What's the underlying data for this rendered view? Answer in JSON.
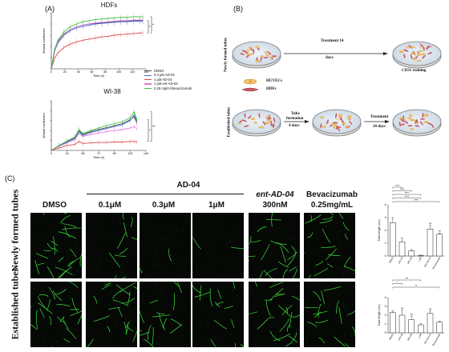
{
  "panel_labels": {
    "a": "(A)",
    "b": "(B)",
    "c": "(C)"
  },
  "chart_data": [
    {
      "type": "line",
      "title": "HDFs",
      "xlabel": "Time (h)",
      "ylabel": "Wound confluence",
      "x_ticks": [
        "0",
        "20",
        "40",
        "60",
        "80",
        "100",
        "120",
        "140"
      ],
      "xlim": [
        0,
        150
      ],
      "ylim": [
        0,
        100
      ],
      "series": [
        {
          "name": "DMSO",
          "color": "#444444",
          "x": [
            0,
            5,
            10,
            20,
            30,
            40,
            50,
            60,
            70,
            80,
            90,
            100,
            110,
            120,
            130,
            140,
            145
          ],
          "y": [
            0,
            32,
            48,
            62,
            70,
            75,
            78,
            80,
            81,
            82,
            83,
            84,
            85,
            85,
            86,
            86,
            86
          ]
        },
        {
          "name": "0.3 μM AD-04",
          "color": "#4a6fd8",
          "x": [
            0,
            5,
            10,
            20,
            30,
            40,
            50,
            60,
            70,
            80,
            90,
            100,
            110,
            120,
            130,
            140,
            145
          ],
          "y": [
            0,
            30,
            45,
            60,
            68,
            73,
            76,
            78,
            80,
            81,
            82,
            83,
            84,
            84,
            85,
            85,
            85
          ]
        },
        {
          "name": "1 μM AD-04",
          "color": "#d94a4a",
          "x": [
            0,
            5,
            10,
            20,
            30,
            40,
            50,
            60,
            70,
            80,
            90,
            100,
            110,
            120,
            130,
            140,
            145
          ],
          "y": [
            0,
            18,
            28,
            38,
            44,
            48,
            51,
            53,
            55,
            57,
            58,
            60,
            61,
            62,
            63,
            64,
            64
          ]
        },
        {
          "name": "1 μM ent-AD-04",
          "color": "#e37ad8",
          "x": [
            0,
            5,
            10,
            20,
            30,
            40,
            50,
            60,
            70,
            80,
            90,
            100,
            110,
            120,
            130,
            140,
            145
          ],
          "y": [
            0,
            31,
            47,
            61,
            70,
            75,
            78,
            80,
            82,
            83,
            84,
            85,
            86,
            86,
            87,
            87,
            87
          ]
        },
        {
          "name": "0.25 mg/ml Bevacizumab",
          "color": "#3fbf3f",
          "x": [
            0,
            5,
            10,
            20,
            30,
            40,
            50,
            60,
            70,
            80,
            90,
            100,
            110,
            120,
            130,
            140,
            145
          ],
          "y": [
            0,
            34,
            50,
            66,
            75,
            80,
            84,
            86,
            88,
            89,
            90,
            91,
            92,
            92,
            93,
            93,
            93
          ]
        }
      ],
      "annotations": [
        "*",
        "*"
      ]
    },
    {
      "type": "line",
      "title": "WI-38",
      "xlabel": "Time (h)",
      "ylabel": "Wound confluence",
      "x_ticks": [
        "0",
        "24",
        "48",
        "72",
        "96",
        "120",
        "144"
      ],
      "xlim": [
        0,
        144
      ],
      "ylim": [
        0,
        100
      ],
      "series": [
        {
          "name": "DMSO",
          "color": "#444444",
          "x": [
            0,
            12,
            24,
            36,
            42,
            48,
            60,
            72,
            84,
            96,
            108,
            120,
            126,
            130
          ],
          "y": [
            0,
            10,
            18,
            26,
            40,
            32,
            38,
            42,
            46,
            50,
            54,
            62,
            68,
            56
          ]
        },
        {
          "name": "0.3 μM AD-04",
          "color": "#4a6fd8",
          "x": [
            0,
            12,
            24,
            36,
            42,
            48,
            60,
            72,
            84,
            96,
            108,
            120,
            126,
            130
          ],
          "y": [
            0,
            9,
            17,
            24,
            38,
            30,
            36,
            40,
            44,
            48,
            52,
            60,
            72,
            60
          ]
        },
        {
          "name": "1 μM AD-04",
          "color": "#d94a4a",
          "x": [
            0,
            12,
            24,
            36,
            42,
            48,
            60,
            72,
            84,
            96,
            108,
            120,
            126,
            130
          ],
          "y": [
            0,
            5,
            10,
            12,
            18,
            14,
            15,
            16,
            16,
            17,
            17,
            18,
            18,
            17
          ]
        },
        {
          "name": "1 μM ent-AD-04",
          "color": "#e37ad8",
          "x": [
            0,
            12,
            24,
            36,
            42,
            48,
            60,
            72,
            84,
            96,
            108,
            120,
            126,
            130
          ],
          "y": [
            0,
            8,
            15,
            22,
            34,
            28,
            32,
            35,
            38,
            40,
            42,
            45,
            48,
            44
          ]
        },
        {
          "name": "0.25 mg/ml Bevacizumab",
          "color": "#3fbf3f",
          "x": [
            0,
            12,
            24,
            36,
            42,
            48,
            60,
            72,
            84,
            96,
            108,
            120,
            126,
            130
          ],
          "y": [
            0,
            10,
            19,
            27,
            42,
            34,
            40,
            45,
            50,
            54,
            58,
            66,
            78,
            62
          ]
        }
      ],
      "annotations": [
        "*",
        "**"
      ]
    },
    {
      "type": "bar",
      "ylabel": "Tube length (cm)",
      "categories": [
        "DMSO",
        "100 nM",
        "300 nM",
        "1 μM",
        "300 nM ent",
        "Bevacizumab"
      ],
      "values": [
        2.6,
        1.1,
        0.4,
        0.05,
        2.1,
        1.7
      ],
      "errors": [
        0.4,
        0.3,
        0.1,
        0.02,
        0.3,
        0.1
      ],
      "ylim": [
        0,
        4
      ],
      "y_ticks": [
        "0",
        "1",
        "2",
        "3",
        "4"
      ],
      "sig_labels": [
        "****",
        "****",
        "****",
        "****",
        "****"
      ],
      "ns_labels": [
        "ns",
        "ns"
      ]
    },
    {
      "type": "bar",
      "ylabel": "Tube length (cm)",
      "categories": [
        "DMSO",
        "100 nM",
        "300 nM",
        "1 μM",
        "300 nM ent",
        "Bevacizumab"
      ],
      "values": [
        2.3,
        2.0,
        1.5,
        0.9,
        2.2,
        1.2
      ],
      "errors": [
        0.2,
        0.6,
        0.4,
        0.15,
        0.3,
        0.1
      ],
      "ylim": [
        0,
        4
      ],
      "y_ticks": [
        "0",
        "1",
        "2",
        "3",
        "4"
      ],
      "sig_labels": [
        "***",
        "*",
        "**"
      ],
      "ns_labels": [
        "ns",
        "ns",
        "ns"
      ]
    }
  ],
  "legend": [
    {
      "label": "DMSO",
      "color": "#444444"
    },
    {
      "label": "0.3 μM AD-04",
      "color": "#4a6fd8"
    },
    {
      "label": "1 μM AD-04",
      "color": "#d94a4a"
    },
    {
      "label": "1 μM ent-AD-04",
      "color": "#e37ad8"
    },
    {
      "label": "0.25 mg/ml Bevacizumab",
      "color": "#3fbf3f"
    }
  ],
  "schematic": {
    "row1_label": "Newly formed tubes",
    "row2_label": "Established tubes",
    "treatment_14": "Treatment 14",
    "days": "days",
    "cd31": "CD31 staining",
    "huvecs": "HUVECs",
    "hdfs": "HDFs",
    "tube_formation_1": "Tube",
    "tube_formation_2": "formation",
    "four_days": "4 days",
    "treatment": "Treatment",
    "ten_days": "10 days"
  },
  "micrograph": {
    "ad04_header": "AD-04",
    "columns": [
      "DMSO",
      "0.1μM",
      "0.3μM",
      "1μM",
      "ent-AD-04",
      "Bevacizumab"
    ],
    "columns_sub": [
      "",
      "",
      "",
      "",
      "300nM",
      "0.25mg/mL"
    ],
    "rows": [
      "Newly formed tubes",
      "Established tubes"
    ]
  }
}
